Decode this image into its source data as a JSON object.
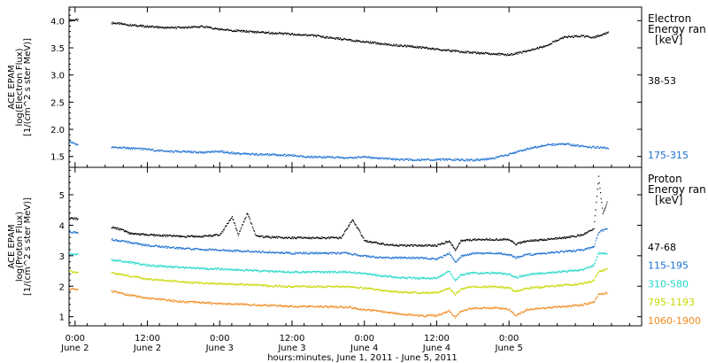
{
  "chart_data": [
    {
      "type": "scatter",
      "panel": "electron",
      "ylabel": [
        "ACE EPAM",
        "log(Electron Flux)",
        "[1/(cm^2 s ster MeV)]"
      ],
      "ylim": [
        1.3,
        4.25
      ],
      "yticks": [
        "1.5",
        "2.0",
        "2.5",
        "3.0",
        "3.5",
        "4.0"
      ],
      "xlim": [
        -1.0,
        94.0
      ],
      "legend_title": [
        "Electron",
        "Energy ran",
        "[keV]"
      ],
      "series": [
        {
          "name": "38-53",
          "color": "#000000",
          "x": [
            -1.0,
            0.5,
            3.0,
            6.0,
            9.0,
            12.0,
            15.0,
            18.0,
            21.0,
            24.0,
            27.0,
            30.0,
            33.0,
            36.0,
            39.0,
            42.0,
            45.0,
            48.0,
            51.0,
            54.0,
            57.0,
            60.0,
            63.0,
            66.0,
            69.0,
            72.0,
            75.0,
            78.0,
            81.0,
            84.0,
            86.0,
            87.5,
            88.5
          ],
          "y": [
            4.02,
            4.02,
            null,
            3.97,
            3.93,
            3.9,
            3.88,
            3.88,
            3.9,
            3.85,
            3.82,
            3.8,
            3.78,
            3.76,
            3.74,
            3.7,
            3.66,
            3.62,
            3.58,
            3.55,
            3.52,
            3.48,
            3.45,
            3.42,
            3.4,
            3.38,
            3.45,
            3.55,
            3.7,
            3.73,
            3.7,
            3.75,
            3.8
          ]
        },
        {
          "name": "175-315",
          "color": "#1a6fd0",
          "x": [
            -1.0,
            0.5,
            3.0,
            6.0,
            9.0,
            12.0,
            15.0,
            18.0,
            21.0,
            24.0,
            27.0,
            30.0,
            33.0,
            36.0,
            39.0,
            42.0,
            45.0,
            48.0,
            51.0,
            54.0,
            57.0,
            60.0,
            63.0,
            66.0,
            69.0,
            72.0,
            75.0,
            78.0,
            81.0,
            84.0,
            86.0,
            87.5,
            88.5
          ],
          "y": [
            1.78,
            1.72,
            null,
            1.68,
            1.66,
            1.64,
            1.6,
            1.6,
            1.58,
            1.6,
            1.56,
            1.55,
            1.54,
            1.53,
            1.5,
            1.5,
            1.48,
            1.5,
            1.47,
            1.45,
            1.45,
            1.45,
            1.45,
            1.44,
            1.47,
            1.55,
            1.65,
            1.72,
            1.74,
            1.7,
            1.68,
            1.67,
            1.65
          ]
        }
      ]
    },
    {
      "type": "scatter",
      "panel": "proton",
      "ylabel": [
        "ACE EPAM",
        "log(Proton Flux)",
        "[1/(cm^2 s ster MeV)]"
      ],
      "ylim": [
        0.7,
        5.9
      ],
      "yticks": [
        "1",
        "2",
        "3",
        "4",
        "5"
      ],
      "xlim": [
        -1.0,
        94.0
      ],
      "legend_title": [
        "Proton",
        "Energy ran",
        "[keV]"
      ],
      "series": [
        {
          "name": "47-68",
          "color": "#000000",
          "x": [
            -1.0,
            0.5,
            3.0,
            6.0,
            8.0,
            9.0,
            12.0,
            18.0,
            21.0,
            24.0,
            26.0,
            27.0,
            28.5,
            30.0,
            33.0,
            36.0,
            39.0,
            44.0,
            46.0,
            48.0,
            51.0,
            54.0,
            57.0,
            60.0,
            62.0,
            63.0,
            64.0,
            66.0,
            70.0,
            72.0,
            73.0,
            75.0,
            78.0,
            81.0,
            84.0,
            86.0,
            86.8,
            87.5,
            88.3
          ],
          "y": [
            4.25,
            4.22,
            null,
            3.95,
            3.85,
            3.75,
            3.7,
            3.65,
            3.65,
            3.7,
            4.3,
            3.7,
            4.4,
            3.65,
            3.62,
            3.6,
            3.6,
            3.6,
            4.2,
            3.5,
            3.4,
            3.35,
            3.35,
            3.35,
            3.5,
            3.2,
            3.5,
            3.55,
            3.55,
            3.55,
            3.4,
            3.5,
            3.55,
            3.6,
            3.7,
            3.9,
            5.6,
            4.4,
            4.8
          ]
        },
        {
          "name": "115-195",
          "color": "#1a6fd0",
          "x": [
            -1.0,
            0.5,
            3.0,
            6.0,
            9.0,
            12.0,
            18.0,
            21.0,
            24.0,
            30.0,
            33.0,
            36.0,
            39.0,
            45.0,
            48.0,
            51.0,
            54.0,
            57.0,
            60.0,
            62.0,
            63.0,
            64.0,
            66.0,
            70.0,
            72.0,
            73.0,
            75.0,
            78.0,
            81.0,
            84.0,
            86.0,
            86.8,
            88.3
          ],
          "y": [
            3.8,
            3.78,
            null,
            3.55,
            3.45,
            3.35,
            3.25,
            3.22,
            3.2,
            3.15,
            3.12,
            3.1,
            3.1,
            3.1,
            3.0,
            2.95,
            2.95,
            2.95,
            2.9,
            3.1,
            2.8,
            3.0,
            3.1,
            3.1,
            3.05,
            2.95,
            3.05,
            3.1,
            3.15,
            3.2,
            3.3,
            3.8,
            3.9
          ]
        },
        {
          "name": "310-580",
          "color": "#1fd6c8",
          "x": [
            -1.0,
            0.5,
            3.0,
            6.0,
            9.0,
            12.0,
            18.0,
            21.0,
            24.0,
            30.0,
            33.0,
            36.0,
            39.0,
            45.0,
            48.0,
            51.0,
            54.0,
            57.0,
            60.0,
            62.0,
            63.0,
            64.0,
            66.0,
            70.0,
            72.0,
            73.0,
            75.0,
            78.0,
            81.0,
            84.0,
            86.0,
            86.8,
            88.3
          ],
          "y": [
            3.08,
            3.05,
            null,
            2.88,
            2.8,
            2.7,
            2.62,
            2.6,
            2.58,
            2.52,
            2.5,
            2.48,
            2.48,
            2.48,
            2.42,
            2.35,
            2.3,
            2.28,
            2.28,
            2.5,
            2.2,
            2.4,
            2.45,
            2.45,
            2.4,
            2.3,
            2.4,
            2.45,
            2.5,
            2.55,
            2.7,
            3.1,
            3.1
          ]
        },
        {
          "name": "795-1193",
          "color": "#c8d800",
          "x": [
            -1.0,
            0.5,
            3.0,
            6.0,
            9.0,
            12.0,
            18.0,
            21.0,
            24.0,
            30.0,
            33.0,
            36.0,
            39.0,
            45.0,
            48.0,
            51.0,
            54.0,
            57.0,
            60.0,
            62.0,
            63.0,
            64.0,
            66.0,
            70.0,
            72.0,
            73.0,
            75.0,
            78.0,
            81.0,
            84.0,
            86.0,
            86.8,
            88.3
          ],
          "y": [
            2.5,
            2.45,
            null,
            2.45,
            2.35,
            2.25,
            2.15,
            2.12,
            2.1,
            2.05,
            2.02,
            2.0,
            2.0,
            2.0,
            1.95,
            1.88,
            1.82,
            1.8,
            1.8,
            1.95,
            1.75,
            1.92,
            2.0,
            2.0,
            1.95,
            1.85,
            1.95,
            2.0,
            2.05,
            2.1,
            2.2,
            2.5,
            2.6
          ]
        },
        {
          "name": "1060-1900",
          "color": "#f08a1c",
          "x": [
            -1.0,
            0.5,
            3.0,
            6.0,
            9.0,
            12.0,
            18.0,
            21.0,
            24.0,
            30.0,
            33.0,
            36.0,
            39.0,
            45.0,
            48.0,
            51.0,
            54.0,
            57.0,
            60.0,
            62.0,
            63.0,
            64.0,
            66.0,
            70.0,
            72.0,
            73.0,
            75.0,
            78.0,
            81.0,
            84.0,
            86.0,
            86.8,
            88.3
          ],
          "y": [
            1.92,
            1.9,
            null,
            1.85,
            1.72,
            1.62,
            1.5,
            1.48,
            1.45,
            1.4,
            1.38,
            1.35,
            1.35,
            1.33,
            1.25,
            1.18,
            1.1,
            1.05,
            1.05,
            1.2,
            1.0,
            1.2,
            1.3,
            1.3,
            1.25,
            1.05,
            1.25,
            1.3,
            1.35,
            1.4,
            1.5,
            1.75,
            1.8
          ]
        }
      ]
    }
  ],
  "x_axis": {
    "ticks": [
      {
        "hour": 0,
        "time": "0:00",
        "date": "June 2"
      },
      {
        "hour": 12,
        "time": "12:00",
        "date": "June 2"
      },
      {
        "hour": 24,
        "time": "0:00",
        "date": "June 3"
      },
      {
        "hour": 36,
        "time": "12:00",
        "date": "June 3"
      },
      {
        "hour": 48,
        "time": "0:00",
        "date": "June 4"
      },
      {
        "hour": 60,
        "time": "12:00",
        "date": "June 4"
      },
      {
        "hour": 72,
        "time": "0:00",
        "date": "June 5"
      }
    ],
    "label": "hours:minutes, June  1, 2011 - June  5, 2011"
  }
}
